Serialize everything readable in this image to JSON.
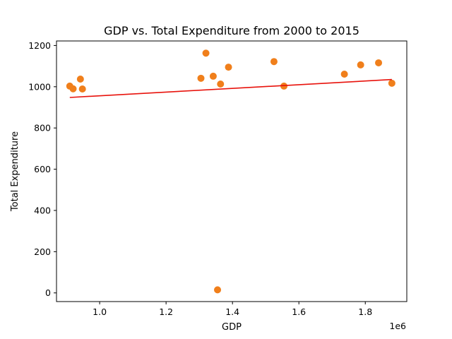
{
  "chart_data": {
    "type": "scatter",
    "title": "GDP vs. Total Expenditure from 2000 to 2015",
    "xlabel": "GDP",
    "ylabel": "Total Expenditure",
    "x_offset_label": "1e6",
    "xlim": [
      870000,
      1925000
    ],
    "ylim": [
      -42,
      1222
    ],
    "x_ticks": [
      1000000,
      1200000,
      1400000,
      1600000,
      1800000
    ],
    "x_tick_labels": [
      "1.0",
      "1.2",
      "1.4",
      "1.6",
      "1.8"
    ],
    "y_ticks": [
      0,
      200,
      400,
      600,
      800,
      1000,
      1200
    ],
    "y_tick_labels": [
      "0",
      "200",
      "400",
      "600",
      "800",
      "1000",
      "1200"
    ],
    "grid": false,
    "points": [
      {
        "x": 910000,
        "y": 1003
      },
      {
        "x": 920000,
        "y": 990
      },
      {
        "x": 942000,
        "y": 1037
      },
      {
        "x": 948000,
        "y": 989
      },
      {
        "x": 1305000,
        "y": 1041
      },
      {
        "x": 1320000,
        "y": 1163
      },
      {
        "x": 1342000,
        "y": 1051
      },
      {
        "x": 1355000,
        "y": 15
      },
      {
        "x": 1364000,
        "y": 1013
      },
      {
        "x": 1388000,
        "y": 1095
      },
      {
        "x": 1525000,
        "y": 1122
      },
      {
        "x": 1555000,
        "y": 1003
      },
      {
        "x": 1737000,
        "y": 1061
      },
      {
        "x": 1786000,
        "y": 1106
      },
      {
        "x": 1840000,
        "y": 1116
      },
      {
        "x": 1880000,
        "y": 1017
      }
    ],
    "trend_line": {
      "x": [
        910000,
        1880000
      ],
      "y": [
        948,
        1035
      ]
    },
    "colors": {
      "points": "#f07f1b",
      "trend_line": "#e8120c",
      "axes": "#000000"
    }
  }
}
